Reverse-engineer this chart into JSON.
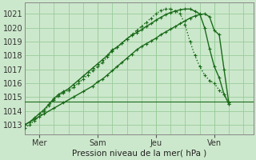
{
  "bg_color": "#cce8cc",
  "grid_color": "#99cc99",
  "line_color": "#1a6b1a",
  "title": "Pression niveau de la mer( hPa )",
  "yticks": [
    1013,
    1014,
    1015,
    1016,
    1017,
    1018,
    1019,
    1020,
    1021
  ],
  "ylim": [
    1012.3,
    1021.8
  ],
  "xlim": [
    0,
    47
  ],
  "xtick_positions": [
    3,
    15,
    27,
    39
  ],
  "xtick_labels": [
    "Mer",
    "Sam",
    "Jeu",
    "Ven"
  ],
  "line_upper_x": [
    0,
    1,
    2,
    3,
    4,
    5,
    6,
    7,
    8,
    9,
    10,
    11,
    12,
    13,
    14,
    15,
    16,
    17,
    18,
    19,
    20,
    21,
    22,
    23,
    24,
    25,
    26,
    27,
    28,
    29,
    30,
    31,
    32,
    33,
    34,
    35,
    36,
    37,
    38,
    39,
    40,
    41,
    42
  ],
  "line_upper_y": [
    1012.8,
    1013.0,
    1013.3,
    1013.6,
    1014.0,
    1014.4,
    1014.8,
    1015.1,
    1015.3,
    1015.5,
    1015.7,
    1016.0,
    1016.3,
    1016.6,
    1016.9,
    1017.2,
    1017.5,
    1017.9,
    1018.3,
    1018.6,
    1018.9,
    1019.2,
    1019.5,
    1019.8,
    1020.1,
    1020.4,
    1020.7,
    1021.0,
    1021.25,
    1021.35,
    1021.35,
    1021.2,
    1021.0,
    1020.2,
    1019.0,
    1018.0,
    1017.2,
    1016.6,
    1016.2,
    1016.0,
    1015.5,
    1015.2,
    1014.6
  ],
  "line_mid_x": [
    0,
    1,
    2,
    3,
    4,
    5,
    6,
    7,
    8,
    9,
    10,
    11,
    12,
    13,
    14,
    15,
    16,
    17,
    18,
    19,
    20,
    21,
    22,
    23,
    24,
    25,
    26,
    27,
    28,
    29,
    30,
    31,
    32,
    33,
    34,
    35,
    36,
    37,
    38,
    39,
    40,
    41,
    42
  ],
  "line_mid_y": [
    1013.0,
    1013.2,
    1013.5,
    1013.8,
    1014.1,
    1014.5,
    1014.9,
    1015.2,
    1015.4,
    1015.6,
    1015.9,
    1016.2,
    1016.5,
    1016.8,
    1017.1,
    1017.4,
    1017.7,
    1018.0,
    1018.4,
    1018.6,
    1018.9,
    1019.2,
    1019.45,
    1019.65,
    1019.85,
    1020.1,
    1020.3,
    1020.55,
    1020.75,
    1020.95,
    1021.1,
    1021.2,
    1021.3,
    1021.35,
    1021.35,
    1021.2,
    1021.0,
    1020.0,
    1018.5,
    1017.2,
    1016.4,
    1015.2,
    1014.5
  ],
  "line_lower_x": [
    0,
    2,
    4,
    6,
    8,
    10,
    12,
    14,
    15,
    16,
    17,
    18,
    19,
    20,
    21,
    22,
    23,
    24,
    25,
    26,
    27,
    28,
    29,
    30,
    31,
    32,
    33,
    34,
    35,
    36,
    37,
    38,
    39,
    40,
    41,
    42
  ],
  "line_lower_y": [
    1013.0,
    1013.4,
    1013.8,
    1014.2,
    1014.6,
    1015.0,
    1015.4,
    1015.8,
    1016.1,
    1016.3,
    1016.6,
    1016.9,
    1017.2,
    1017.5,
    1017.8,
    1018.1,
    1018.4,
    1018.65,
    1018.85,
    1019.05,
    1019.25,
    1019.5,
    1019.7,
    1019.9,
    1020.1,
    1020.3,
    1020.5,
    1020.7,
    1020.85,
    1020.95,
    1021.0,
    1020.8,
    1019.8,
    1019.5,
    1017.0,
    1014.5
  ],
  "flat_line_x": [
    0,
    47
  ],
  "flat_line_y": [
    1014.7,
    1014.7
  ]
}
